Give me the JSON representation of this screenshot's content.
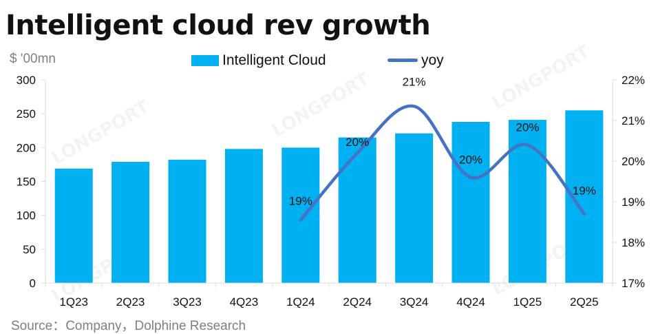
{
  "title": "Intelligent cloud rev growth",
  "unit_label": "$ '00mn",
  "source": "Source：Company，Dolphine Research",
  "watermark": "LONGPORT",
  "colors": {
    "bar": "#00b0f0",
    "line": "#4472c4",
    "axis": "#d9d9d9"
  },
  "chart_data": {
    "type": "bar",
    "title": "Intelligent cloud rev growth",
    "categories": [
      "1Q23",
      "2Q23",
      "3Q23",
      "4Q23",
      "1Q24",
      "2Q24",
      "3Q24",
      "4Q24",
      "1Q25",
      "2Q25"
    ],
    "series": [
      {
        "name": "Intelligent Cloud",
        "type": "bar",
        "axis": "left",
        "values": [
          169,
          179,
          182,
          198,
          200,
          215,
          221,
          238,
          241,
          255
        ]
      },
      {
        "name": "yoy",
        "type": "line",
        "axis": "right",
        "values": [
          null,
          null,
          null,
          null,
          18.55,
          20.2,
          21.35,
          19.6,
          20.4,
          18.7
        ],
        "labels": [
          null,
          null,
          null,
          null,
          "19%",
          "20%",
          "21%",
          "20%",
          "20%",
          "19%"
        ]
      }
    ],
    "y_left": {
      "range": [
        0,
        300
      ],
      "ticks": [
        0,
        50,
        100,
        150,
        200,
        250,
        300
      ]
    },
    "y_right": {
      "range": [
        17,
        22
      ],
      "ticks": [
        "17%",
        "18%",
        "19%",
        "20%",
        "21%",
        "22%"
      ]
    },
    "legend_placement": "top",
    "grid": false
  }
}
